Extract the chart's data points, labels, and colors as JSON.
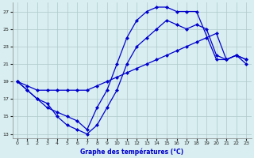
{
  "xlabel": "Graphe des températures (°C)",
  "bg_color": "#d8eef0",
  "grid_color": "#b0c8cc",
  "line_color": "#0000cc",
  "xlim": [
    -0.5,
    23.5
  ],
  "ylim": [
    12.5,
    28.0
  ],
  "xticks": [
    0,
    1,
    2,
    3,
    4,
    5,
    6,
    7,
    8,
    9,
    10,
    11,
    12,
    13,
    14,
    15,
    16,
    17,
    18,
    19,
    20,
    21,
    22,
    23
  ],
  "yticks": [
    13,
    15,
    17,
    19,
    21,
    23,
    25,
    27
  ],
  "series_a_x": [
    0,
    1,
    2,
    3,
    4,
    5,
    6,
    7,
    8,
    9,
    10,
    11,
    12,
    13,
    14,
    15,
    16,
    17,
    18,
    19,
    20,
    21,
    22,
    23
  ],
  "series_a_y": [
    19,
    18,
    17,
    16.5,
    15,
    14,
    13.5,
    13,
    14,
    16,
    18,
    21,
    23,
    24,
    25,
    26,
    25.5,
    25,
    25.5,
    25,
    22,
    21.5,
    22,
    21.5
  ],
  "series_b_x": [
    0,
    1,
    2,
    3,
    4,
    5,
    6,
    7,
    8,
    9,
    10,
    11,
    12,
    13,
    14,
    15,
    16,
    17,
    18,
    20,
    21,
    22,
    23
  ],
  "series_b_y": [
    19,
    18,
    17,
    16,
    15.5,
    15,
    14.5,
    13.5,
    16,
    18,
    21,
    24,
    26,
    27,
    27.5,
    27.5,
    27,
    27,
    27,
    21.5,
    21.5,
    22,
    21
  ],
  "series_c_x": [
    0,
    1,
    2,
    3,
    4,
    5,
    6,
    7,
    8,
    9,
    10,
    11,
    12,
    13,
    14,
    15,
    16,
    17,
    18,
    19,
    20,
    21,
    22,
    23
  ],
  "series_c_y": [
    19,
    18.5,
    18,
    18,
    18,
    18,
    18,
    18,
    18.5,
    19,
    19.5,
    20,
    20.5,
    21,
    21.5,
    22,
    22.5,
    23,
    23.5,
    24,
    24.5,
    21.5,
    22,
    21.5
  ]
}
